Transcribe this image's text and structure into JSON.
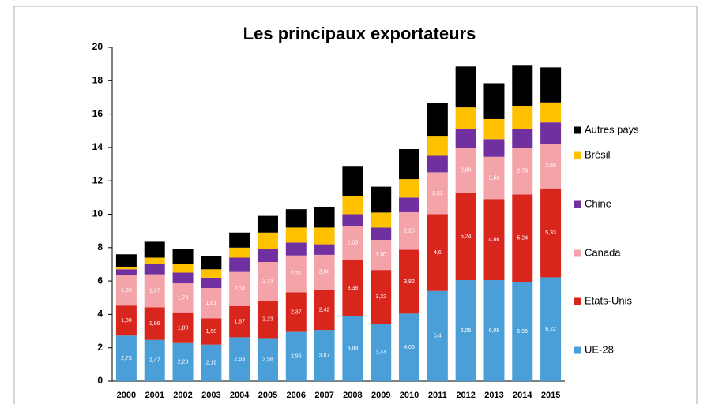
{
  "chart_data": {
    "type": "stacked_bar",
    "title": "Les principaux exportateurs",
    "categories": [
      "2000",
      "2001",
      "2002",
      "2003",
      "2004",
      "2005",
      "2006",
      "2007",
      "2008",
      "2009",
      "2010",
      "2011",
      "2012",
      "2013",
      "2014",
      "2015"
    ],
    "series": [
      {
        "name": "UE-28",
        "color": "#4a9fd8",
        "values": [
          2.73,
          2.47,
          2.28,
          2.19,
          2.63,
          2.58,
          2.95,
          3.07,
          3.89,
          3.44,
          4.05,
          5.4,
          6.05,
          6.05,
          5.95,
          6.22
        ],
        "value_labels": [
          "2,73",
          "2,47",
          "2,28",
          "2,19",
          "2,63",
          "2,58",
          "2,95",
          "3,07",
          "3,89",
          "3,44",
          "4,05",
          "5,4",
          "6,05",
          "6,05",
          "5,95",
          "6,22"
        ]
      },
      {
        "name": "Etats-Unis",
        "color": "#d9261c",
        "values": [
          1.8,
          1.96,
          1.8,
          1.58,
          1.87,
          2.23,
          2.37,
          2.42,
          3.38,
          3.22,
          3.82,
          4.6,
          5.24,
          4.86,
          5.24,
          5.33
        ],
        "value_labels": [
          "1,80",
          "1,96",
          "1,80",
          "1,58",
          "1,87",
          "2,23",
          "2,37",
          "2,42",
          "3,38",
          "3,22",
          "3,82",
          "4,6",
          "5,24",
          "4,86",
          "5,24",
          "5,33"
        ]
      },
      {
        "name": "Canada",
        "color": "#f4a3a8",
        "values": [
          1.82,
          1.97,
          1.78,
          1.81,
          2.04,
          2.33,
          2.21,
          2.08,
          2.03,
          1.8,
          2.25,
          2.51,
          2.69,
          2.53,
          2.79,
          2.68
        ],
        "value_labels": [
          "1,82",
          "1,97",
          "1,78",
          "1,81",
          "2,04",
          "2,33",
          "2,21",
          "2,08",
          "2,03",
          "1,80",
          "2,25",
          "2,51",
          "2,69",
          "2,53",
          "2,79",
          "2,68"
        ]
      },
      {
        "name": "Chine",
        "color": "#7030a0",
        "values": [
          0.35,
          0.6,
          0.64,
          0.62,
          0.86,
          0.76,
          0.77,
          0.63,
          0.7,
          0.74,
          0.88,
          0.99,
          1.12,
          1.06,
          1.12,
          1.27
        ]
      },
      {
        "name": "Brésil",
        "color": "#ffc000",
        "values": [
          0.15,
          0.4,
          0.5,
          0.5,
          0.6,
          1.0,
          0.9,
          1.0,
          1.1,
          0.9,
          1.1,
          1.2,
          1.3,
          1.2,
          1.4,
          1.2
        ]
      },
      {
        "name": "Autres pays",
        "color": "#000000",
        "values": [
          0.75,
          0.95,
          0.9,
          0.8,
          0.9,
          1.0,
          1.1,
          1.25,
          1.75,
          1.55,
          1.8,
          1.95,
          2.45,
          2.15,
          2.4,
          2.1
        ]
      }
    ],
    "ylim": [
      0,
      20
    ],
    "yticks": [
      0,
      2,
      4,
      6,
      8,
      10,
      12,
      14,
      16,
      18,
      20
    ],
    "grid": false
  }
}
